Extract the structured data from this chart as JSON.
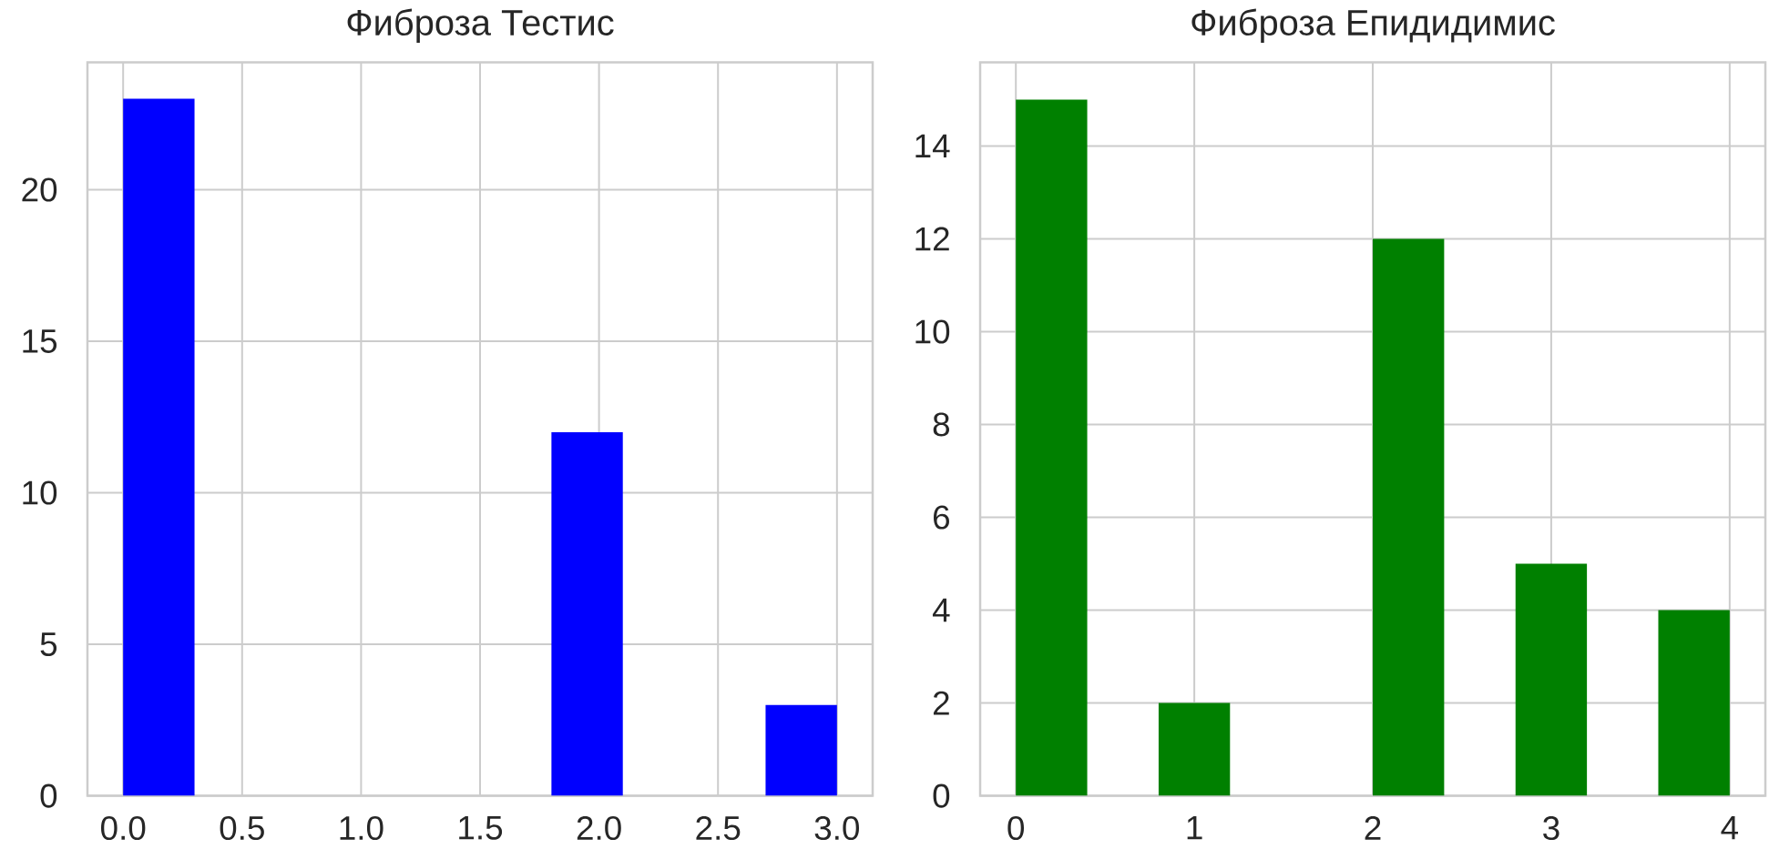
{
  "chart_data": [
    {
      "type": "histogram",
      "title": "Фиброза Тестис",
      "bins": [
        0,
        0.3,
        0.6,
        0.9,
        1.2,
        1.5,
        1.8,
        2.1,
        2.4,
        2.7,
        3.0
      ],
      "values": [
        23,
        0,
        0,
        0,
        0,
        0,
        12,
        0,
        0,
        3
      ],
      "color": "#0000ff",
      "xlim": [
        -0.15,
        3.15
      ],
      "ylim": [
        0,
        24.2
      ],
      "xticks": [
        {
          "value": 0,
          "label": "0.0"
        },
        {
          "value": 0.5,
          "label": "0.5"
        },
        {
          "value": 1,
          "label": "1.0"
        },
        {
          "value": 1.5,
          "label": "1.5"
        },
        {
          "value": 2,
          "label": "2.0"
        },
        {
          "value": 2.5,
          "label": "2.5"
        },
        {
          "value": 3,
          "label": "3.0"
        }
      ],
      "yticks": [
        0,
        5,
        10,
        15,
        20
      ],
      "grid": true
    },
    {
      "type": "histogram",
      "title": "Фиброза Епидидимис",
      "bins": [
        0,
        0.4,
        0.8,
        1.2,
        1.6,
        2.0,
        2.4,
        2.8,
        3.2,
        3.6,
        4.0
      ],
      "values": [
        15,
        0,
        2,
        0,
        0,
        12,
        0,
        5,
        0,
        4
      ],
      "color": "#008000",
      "xlim": [
        -0.2,
        4.2
      ],
      "ylim": [
        0,
        15.8
      ],
      "xticks": [
        0,
        1,
        2,
        3,
        4
      ],
      "yticks": [
        0,
        2,
        4,
        6,
        8,
        10,
        12,
        14
      ],
      "grid": true
    }
  ]
}
